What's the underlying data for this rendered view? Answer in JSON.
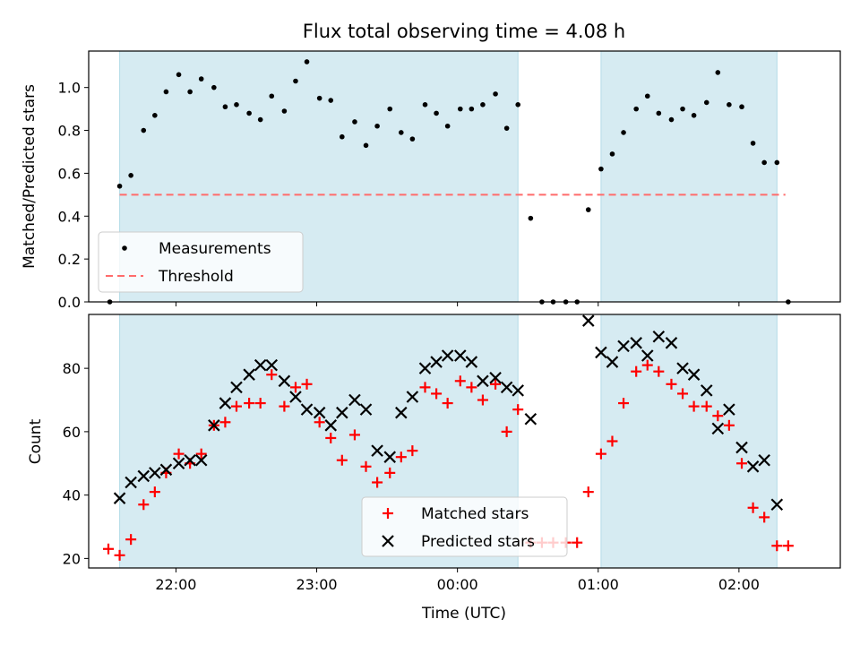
{
  "figure": {
    "title": "Flux total observing time = 4.08 h",
    "xlabel": "Time (UTC)"
  },
  "colors": {
    "shading": "#add8e6",
    "measurements": "#000000",
    "threshold": "#ff6b6b",
    "matched": "#ff0000",
    "predicted": "#000000"
  },
  "chart_data": [
    {
      "type": "scatter",
      "ylabel": "Matched/Predicted stars",
      "ylim": [
        0,
        1.17
      ],
      "xlim_hours": [
        21.38,
        26.72
      ],
      "x_ticks": [
        {
          "value": 22,
          "label": ""
        },
        {
          "value": 23,
          "label": ""
        },
        {
          "value": 24,
          "label": ""
        },
        {
          "value": 25,
          "label": ""
        },
        {
          "value": 26,
          "label": ""
        }
      ],
      "y_ticks": [
        {
          "value": 0,
          "label": "0.0"
        },
        {
          "value": 0.2,
          "label": "0.2"
        },
        {
          "value": 0.4,
          "label": "0.4"
        },
        {
          "value": 0.6,
          "label": "0.6"
        },
        {
          "value": 0.8,
          "label": "0.8"
        },
        {
          "value": 1.0,
          "label": "1.0"
        }
      ],
      "shaded_intervals": [
        [
          21.6,
          24.43
        ],
        [
          25.02,
          26.27
        ]
      ],
      "threshold": {
        "value": 0.5,
        "x_range": [
          21.6,
          26.33
        ]
      },
      "legend": {
        "placement": "lower left",
        "entries": [
          "Measurements",
          "Threshold"
        ]
      },
      "series": [
        {
          "name": "Measurements",
          "marker": "dot",
          "x": [
            21.53,
            21.6,
            21.68,
            21.77,
            21.85,
            21.93,
            22.02,
            22.1,
            22.18,
            22.27,
            22.35,
            22.43,
            22.52,
            22.6,
            22.68,
            22.77,
            22.85,
            22.93,
            23.02,
            23.1,
            23.18,
            23.27,
            23.35,
            23.43,
            23.52,
            23.6,
            23.68,
            23.77,
            23.85,
            23.93,
            24.02,
            24.1,
            24.18,
            24.27,
            24.35,
            24.43,
            24.52,
            24.6,
            24.68,
            24.77,
            24.85,
            24.93,
            25.02,
            25.1,
            25.18,
            25.27,
            25.35,
            25.43,
            25.52,
            25.6,
            25.68,
            25.77,
            25.85,
            25.93,
            26.02,
            26.1,
            26.18,
            26.27,
            26.35
          ],
          "y": [
            0.0,
            0.54,
            0.59,
            0.8,
            0.87,
            0.98,
            1.06,
            0.98,
            1.04,
            1.0,
            0.91,
            0.92,
            0.88,
            0.85,
            0.96,
            0.89,
            1.03,
            1.12,
            0.95,
            0.94,
            0.77,
            0.84,
            0.73,
            0.82,
            0.9,
            0.79,
            0.76,
            0.92,
            0.88,
            0.82,
            0.9,
            0.9,
            0.92,
            0.97,
            0.81,
            0.92,
            0.39,
            0.0,
            0.0,
            0.0,
            0.0,
            0.43,
            0.62,
            0.69,
            0.79,
            0.9,
            0.96,
            0.88,
            0.85,
            0.9,
            0.87,
            0.93,
            1.07,
            0.92,
            0.91,
            0.74,
            0.65,
            0.65,
            0.0
          ]
        }
      ]
    },
    {
      "type": "scatter",
      "ylabel": "Count",
      "ylim": [
        17,
        97
      ],
      "xlim_hours": [
        21.38,
        26.72
      ],
      "x_ticks": [
        {
          "value": 22,
          "label": "22:00"
        },
        {
          "value": 23,
          "label": "23:00"
        },
        {
          "value": 24,
          "label": "00:00"
        },
        {
          "value": 25,
          "label": "01:00"
        },
        {
          "value": 26,
          "label": "02:00"
        }
      ],
      "y_ticks": [
        {
          "value": 20,
          "label": "20"
        },
        {
          "value": 40,
          "label": "40"
        },
        {
          "value": 60,
          "label": "60"
        },
        {
          "value": 80,
          "label": "80"
        }
      ],
      "shaded_intervals": [
        [
          21.6,
          24.43
        ],
        [
          25.02,
          26.27
        ]
      ],
      "legend": {
        "placement": "lower center",
        "entries": [
          "Matched stars",
          "Predicted stars"
        ]
      },
      "series": [
        {
          "name": "Matched stars",
          "marker": "plus",
          "x": [
            21.52,
            21.6,
            21.68,
            21.77,
            21.85,
            21.93,
            22.02,
            22.1,
            22.18,
            22.27,
            22.35,
            22.43,
            22.52,
            22.6,
            22.68,
            22.77,
            22.85,
            22.93,
            23.02,
            23.1,
            23.18,
            23.27,
            23.35,
            23.43,
            23.52,
            23.6,
            23.68,
            23.77,
            23.85,
            23.93,
            24.02,
            24.1,
            24.18,
            24.27,
            24.35,
            24.43,
            24.52,
            24.6,
            24.68,
            24.77,
            24.85,
            24.93,
            25.02,
            25.1,
            25.18,
            25.27,
            25.35,
            25.43,
            25.52,
            25.6,
            25.68,
            25.77,
            25.85,
            25.93,
            26.02,
            26.1,
            26.18,
            26.27,
            26.35
          ],
          "y": [
            23,
            21,
            26,
            37,
            41,
            47,
            53,
            50,
            53,
            62,
            63,
            68,
            69,
            69,
            78,
            68,
            74,
            75,
            63,
            58,
            51,
            59,
            49,
            44,
            47,
            52,
            54,
            74,
            72,
            69,
            76,
            74,
            70,
            75,
            60,
            67,
            25,
            25,
            25,
            25,
            25,
            41,
            53,
            57,
            69,
            79,
            81,
            79,
            75,
            72,
            68,
            68,
            65,
            62,
            50,
            36,
            33,
            24,
            24
          ]
        },
        {
          "name": "Predicted stars",
          "marker": "x",
          "x": [
            21.6,
            21.68,
            21.77,
            21.85,
            21.93,
            22.02,
            22.1,
            22.18,
            22.27,
            22.35,
            22.43,
            22.52,
            22.6,
            22.68,
            22.77,
            22.85,
            22.93,
            23.02,
            23.1,
            23.18,
            23.27,
            23.35,
            23.43,
            23.52,
            23.6,
            23.68,
            23.77,
            23.85,
            23.93,
            24.02,
            24.1,
            24.18,
            24.27,
            24.35,
            24.43,
            24.52,
            24.93,
            25.02,
            25.1,
            25.18,
            25.27,
            25.35,
            25.43,
            25.52,
            25.6,
            25.68,
            25.77,
            25.85,
            25.93,
            26.02,
            26.1,
            26.18,
            26.27
          ],
          "y": [
            39,
            44,
            46,
            47,
            48,
            50,
            51,
            51,
            62,
            69,
            74,
            78,
            81,
            81,
            76,
            71,
            67,
            66,
            62,
            66,
            70,
            67,
            54,
            52,
            66,
            71,
            80,
            82,
            84,
            84,
            82,
            76,
            77,
            74,
            73,
            64,
            95,
            85,
            82,
            87,
            88,
            84,
            90,
            88,
            80,
            78,
            73,
            61,
            67,
            55,
            49,
            51,
            37
          ]
        }
      ]
    }
  ]
}
